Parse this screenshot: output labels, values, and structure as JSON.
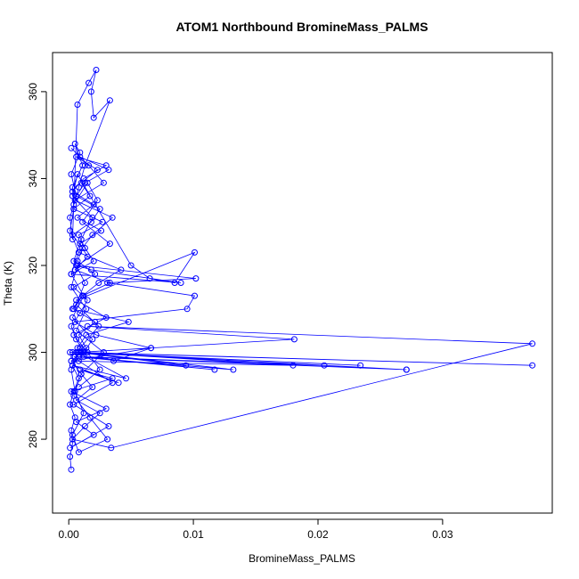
{
  "chart_data": {
    "type": "scatter",
    "title": "ATOM1 Northbound BromineMass_PALMS",
    "xlabel": "BromineMass_PALMS",
    "ylabel": "Theta (K)",
    "xlim": [
      -0.0013,
      0.0388
    ],
    "ylim": [
      263,
      369
    ],
    "x_ticks": [
      0.0,
      0.01,
      0.02,
      0.03
    ],
    "x_tick_labels": [
      "0.00",
      "0.01",
      "0.02",
      "0.03"
    ],
    "y_ticks": [
      280,
      300,
      320,
      340,
      360
    ],
    "y_tick_labels": [
      "280",
      "300",
      "320",
      "340",
      "360"
    ],
    "grid": false,
    "connected": true,
    "marker": "open-circle",
    "color": "#0000ff",
    "series": [
      {
        "name": "",
        "x": [
          0.0002,
          0.0001,
          0.0003,
          0.0002,
          0.0005,
          0.0001,
          0.0004,
          0.0008,
          0.0003,
          0.0012,
          0.0006,
          0.0002,
          0.0009,
          0.0015,
          0.0004,
          0.0021,
          0.0007,
          0.0011,
          0.0003,
          0.0018,
          0.0025,
          0.0006,
          0.0013,
          0.0032,
          0.0009,
          0.0002,
          0.0016,
          0.0028,
          0.0005,
          0.0035,
          0.0019,
          0.0008,
          0.0042,
          0.0024,
          0.0011,
          0.0003,
          0.0048,
          0.0014,
          0.0007,
          0.0036,
          0.0066,
          0.0022,
          0.0005,
          0.0095,
          0.0101,
          0.0031,
          0.0102,
          0.0006,
          0.0018,
          0.009,
          0.0002,
          0.002,
          0.0013,
          0.0008,
          0.0027,
          0.0004,
          0.0017,
          0.001,
          0.0023,
          0.0006,
          0.003,
          0.0012,
          0.0003,
          0.002,
          0.0007,
          0.0026,
          0.0009,
          0.0015,
          0.0005,
          0.0033,
          0.0011,
          0.0004,
          0.0021,
          0.0008,
          0.0014,
          0.0002,
          0.001,
          0.0019,
          0.0006,
          0.0025,
          0.0013,
          0.0003,
          0.0034,
          0.0372,
          0.0015,
          0.0181,
          0.0009,
          0.0094,
          0.0006,
          0.0234,
          0.0003,
          0.0271,
          0.0012,
          0.0117,
          0.0005,
          0.0205,
          0.0008,
          0.0066,
          0.0002,
          0.018,
          0.001,
          0.0132,
          0.0004,
          0.0271,
          0.0001,
          0.0372,
          0.0007,
          0.0046,
          0.0003,
          0.004,
          0.0009,
          0.0035,
          0.0002,
          0.003,
          0.0006,
          0.002,
          0.0001,
          0.0032,
          0.0004,
          0.0035,
          0.0008,
          0.0019,
          0.0003,
          0.0012,
          0.0002,
          0.0008,
          0.0001,
          0.0004,
          0.0003,
          0.0011,
          0.0005,
          0.0009,
          0.0002,
          0.0006,
          0.0001,
          0.0003,
          0.0007,
          0.0016,
          0.0022,
          0.0018,
          0.002,
          0.0033,
          0.0013,
          0.0008,
          0.0004,
          0.0015,
          0.0023,
          0.0011,
          0.0033,
          0.0007,
          0.0002,
          0.0014,
          0.0006,
          0.0028,
          0.001,
          0.0004,
          0.0017,
          0.0031,
          0.0008,
          0.0003,
          0.0012,
          0.0005,
          0.0002,
          0.0009,
          0.0024,
          0.0006,
          0.0013,
          0.0004,
          0.001,
          0.0019,
          0.0003,
          0.0007,
          0.005,
          0.0065,
          0.0085,
          0.0101,
          0.0006,
          0.003,
          0.0004,
          0.0015,
          0.0025,
          0.0008
        ],
        "y": [
          273,
          276,
          279,
          282,
          285,
          288,
          291,
          294,
          297,
          300,
          303,
          306,
          309,
          312,
          315,
          318,
          321,
          324,
          327,
          330,
          333,
          336,
          339,
          342,
          345,
          347,
          343,
          339,
          335,
          331,
          327,
          323,
          319,
          316,
          313,
          310,
          307,
          304,
          301,
          298,
          301,
          304,
          307,
          310,
          313,
          316,
          317,
          320,
          319,
          316,
          318,
          321,
          324,
          327,
          330,
          333,
          336,
          339,
          342,
          345,
          343,
          340,
          337,
          334,
          331,
          328,
          325,
          322,
          319,
          316,
          313,
          310,
          307,
          304,
          301,
          298,
          295,
          292,
          289,
          286,
          283,
          280,
          278,
          302,
          306,
          303,
          300,
          297,
          300,
          297,
          300,
          296,
          299,
          296,
          299,
          297,
          300,
          301,
          298,
          297,
          300,
          296,
          299,
          296,
          300,
          297,
          300,
          294,
          297,
          293,
          296,
          294,
          291,
          287,
          284,
          281,
          278,
          283,
          288,
          293,
          298,
          303,
          308,
          313,
          318,
          323,
          328,
          333,
          338,
          343,
          348,
          346,
          341,
          336,
          331,
          326,
          357,
          362,
          365,
          360,
          354,
          358,
          343,
          338,
          334,
          339,
          335,
          330,
          325,
          320,
          315,
          310,
          305,
          300,
          295,
          290,
          285,
          280,
          277,
          281,
          286,
          291,
          296,
          301,
          306,
          311,
          316,
          321,
          326,
          331,
          336,
          341,
          320,
          317,
          316,
          323,
          312,
          308,
          304,
          300,
          296,
          292
        ]
      }
    ]
  }
}
